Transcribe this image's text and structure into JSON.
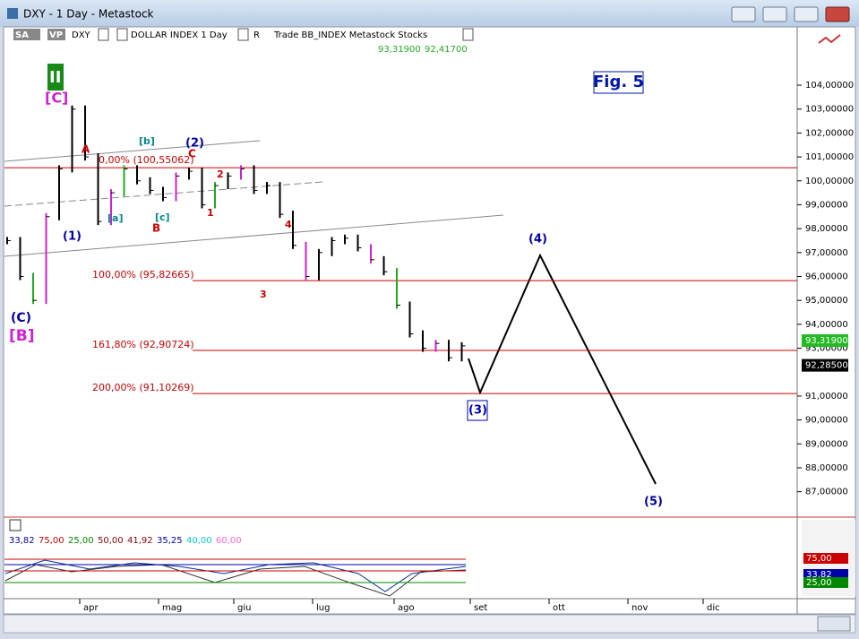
{
  "window": {
    "title": "DXY - 1 Day - Metastock"
  },
  "toolbar": {
    "items": [
      "SA",
      "VP",
      "DXY",
      "DOLLAR INDEX  1 Day",
      "R",
      "Trade  BB_INDEX  Metastock  Stocks"
    ],
    "quote": [
      "93,31900",
      "92,41700"
    ]
  },
  "price_chart": {
    "figure_label": "Fig. 5",
    "ylim": [
      85.9,
      105.8
    ],
    "yticks": [
      {
        "value": 104,
        "label": "104,00000"
      },
      {
        "value": 103,
        "label": "103,00000"
      },
      {
        "value": 102,
        "label": "102,00000"
      },
      {
        "value": 101,
        "label": "101,00000"
      },
      {
        "value": 100,
        "label": "100,00000"
      },
      {
        "value": 99,
        "label": "99,00000"
      },
      {
        "value": 98,
        "label": "98,00000"
      },
      {
        "value": 97,
        "label": "97,00000"
      },
      {
        "value": 96,
        "label": "96,00000"
      },
      {
        "value": 95,
        "label": "95,00000"
      },
      {
        "value": 94,
        "label": "94,00000"
      },
      {
        "value": 93,
        "label": "93,00000"
      },
      {
        "value": 91,
        "label": "91,00000"
      },
      {
        "value": 90,
        "label": "90,00000"
      },
      {
        "value": 89,
        "label": "89,00000"
      },
      {
        "value": 88,
        "label": "88,00000"
      },
      {
        "value": 87,
        "label": "87,00000"
      }
    ],
    "closes": [
      97.5,
      96.0,
      95.0,
      98.5,
      100.5,
      103.0,
      101.0,
      98.3,
      99.5,
      100.5,
      100.0,
      99.6,
      99.3,
      100.2,
      100.4,
      99.0,
      99.8,
      100.2,
      100.5,
      99.6,
      99.8,
      98.6,
      97.3,
      96.0,
      97.0,
      97.5,
      97.6,
      97.2,
      96.7,
      96.2,
      94.8,
      93.6,
      93.0,
      93.2,
      92.6,
      93.1
    ],
    "last_prices": [
      {
        "value": 93.319,
        "label": "93,31900"
      },
      {
        "value": 92.285,
        "label": "92,28500"
      }
    ],
    "levels": [
      {
        "value": 100.55062,
        "label": "0,00% (100,55062)"
      },
      {
        "value": 95.82665,
        "label": "100,00% (95,82665)"
      },
      {
        "value": 92.90724,
        "label": "161,80% (92,90724)"
      },
      {
        "value": 91.10269,
        "label": "200,00% (91,10269)"
      }
    ],
    "waves": [
      "II",
      "[C]",
      "(C)",
      "[B]",
      "(1)",
      "(2)",
      "A",
      "B",
      "C",
      "[a]",
      "[b]",
      "[c]",
      "1",
      "2",
      "3",
      "4",
      "(3)",
      "(4)",
      "(5)"
    ],
    "months": [
      "apr",
      "mag",
      "giu",
      "lug",
      "ago",
      "set",
      "ott",
      "nov",
      "dic"
    ]
  },
  "indicator": {
    "values": [
      "33,82",
      "75,00",
      "25,00",
      "50,00",
      "41,92",
      "35,25",
      "40,00",
      "60,00"
    ],
    "axis_labels": [
      "75,00",
      "33,82",
      "25,00"
    ]
  }
}
